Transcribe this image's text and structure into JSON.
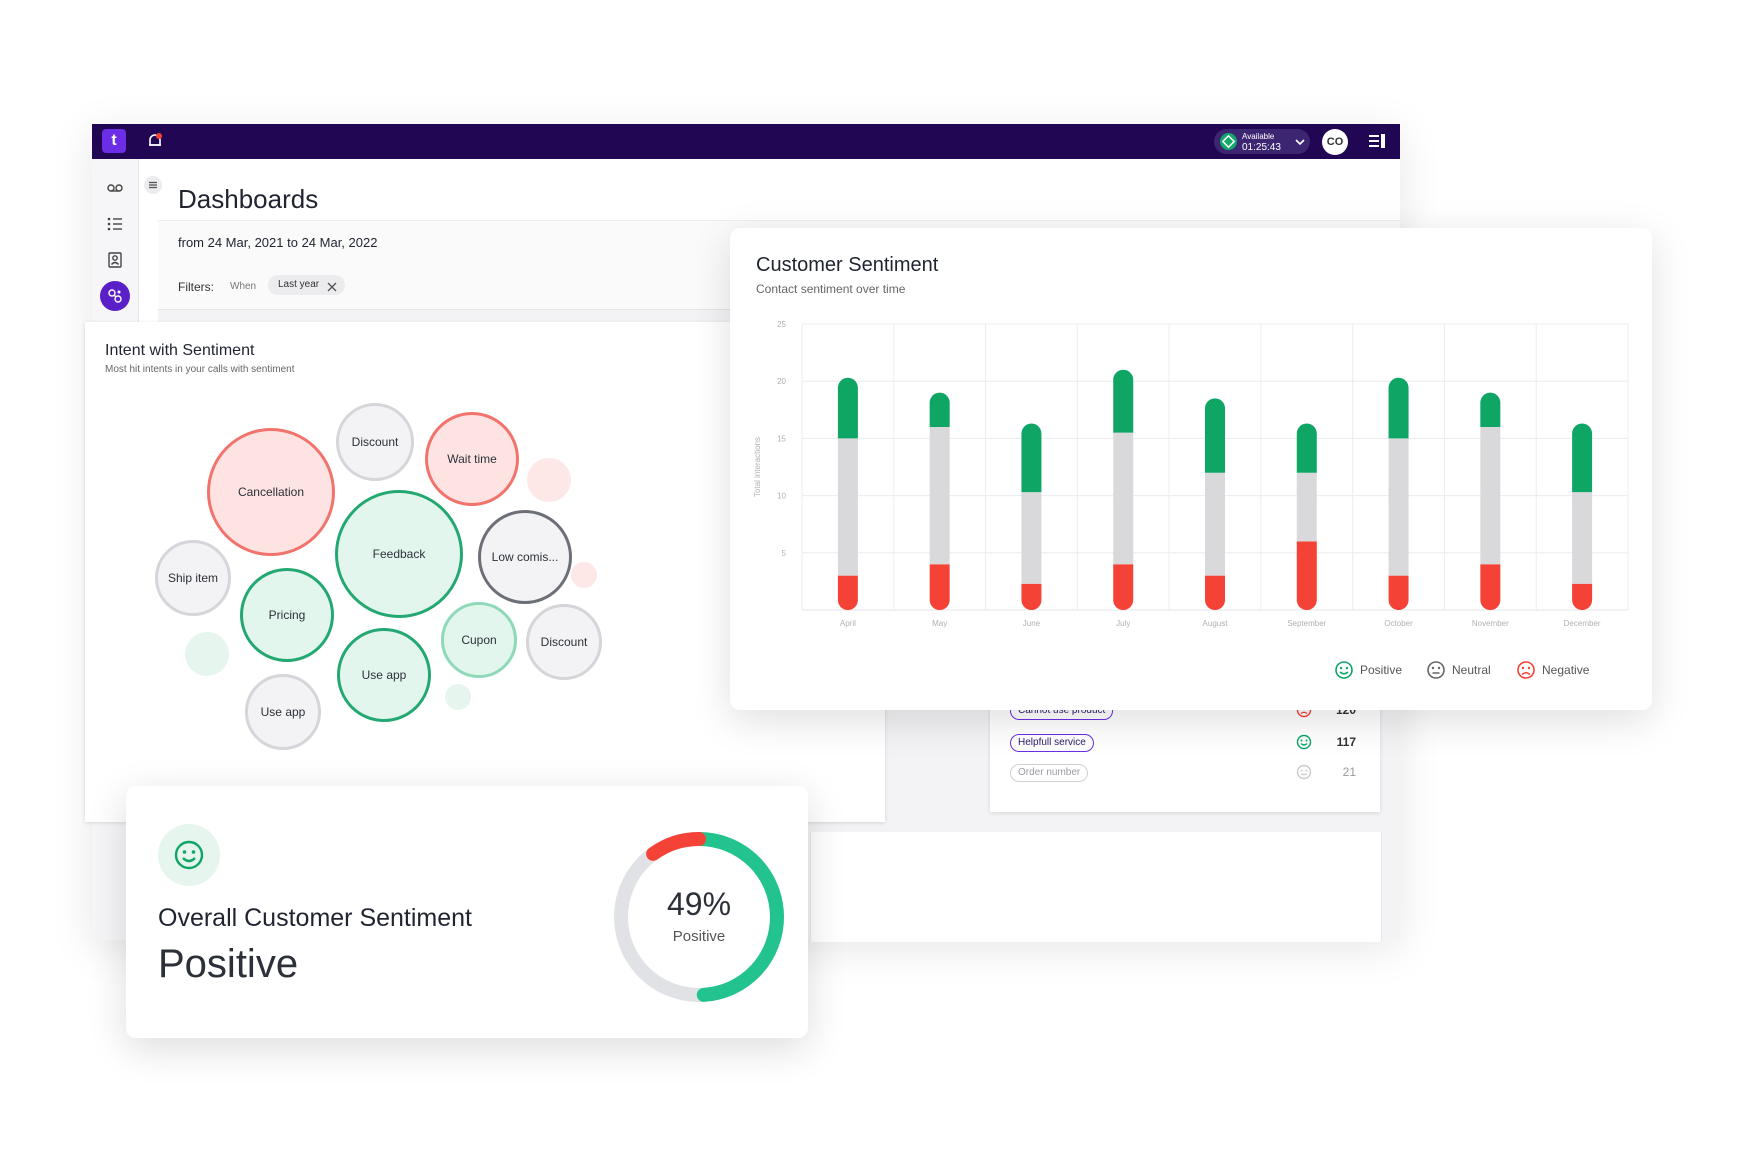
{
  "topbar": {
    "logo_text": "t",
    "status_label": "Available",
    "status_timer": "01:25:43",
    "avatar_initials": "CO"
  },
  "sidebar": {
    "items": [
      {
        "icon": "voicemail-icon"
      },
      {
        "icon": "list-icon"
      },
      {
        "icon": "contacts-icon"
      },
      {
        "icon": "analytics-icon",
        "active": true
      },
      {
        "icon": "brain-icon"
      },
      {
        "icon": "compass-icon"
      },
      {
        "icon": "gear-icon"
      }
    ]
  },
  "page": {
    "title": "Dashboards",
    "date_range": "from 24 Mar, 2021 to 24 Mar, 2022",
    "filters_label": "Filters:",
    "when_label": "When",
    "filter_chip": "Last year"
  },
  "intent_card": {
    "title": "Intent with Sentiment",
    "subtitle": "Most hit intents in your calls with sentiment",
    "bubbles": [
      {
        "label": "Discount",
        "sentiment": "neutral"
      },
      {
        "label": "Wait time",
        "sentiment": "negative"
      },
      {
        "label": "Cancellation",
        "sentiment": "negative"
      },
      {
        "label": "Feedback",
        "sentiment": "positive"
      },
      {
        "label": "Low comis...",
        "sentiment": "neutral-dark"
      },
      {
        "label": "Ship item",
        "sentiment": "neutral"
      },
      {
        "label": "Pricing",
        "sentiment": "positive"
      },
      {
        "label": "Cupon",
        "sentiment": "positive-light"
      },
      {
        "label": "Discount",
        "sentiment": "neutral"
      },
      {
        "label": "Use app",
        "sentiment": "positive"
      },
      {
        "label": "Use app",
        "sentiment": "neutral"
      }
    ]
  },
  "intent_table": {
    "rows": [
      {
        "tag": "Cannot use product",
        "sentiment": "negative",
        "count": "120"
      },
      {
        "tag": "Helpfull service",
        "sentiment": "positive",
        "count": "117"
      },
      {
        "tag": "Order number",
        "sentiment": "neutral",
        "count": "21"
      }
    ]
  },
  "sentiment_card": {
    "title": "Customer Sentiment",
    "subtitle": "Contact sentiment over time",
    "legend": {
      "positive": "Positive",
      "neutral": "Neutral",
      "negative": "Negative"
    }
  },
  "chart_data": {
    "type": "bar",
    "stacked": true,
    "title": "Customer Sentiment",
    "subtitle": "Contact sentiment over time",
    "ylabel": "Total interactions",
    "xlabel": "",
    "ylim": [
      0,
      25
    ],
    "yticks": [
      5,
      10,
      15,
      20,
      25
    ],
    "grid": true,
    "legend_position": "bottom-right",
    "categories": [
      "April",
      "May",
      "June",
      "July",
      "August",
      "September",
      "October",
      "November",
      "December"
    ],
    "series": [
      {
        "name": "Negative",
        "color": "#f44336",
        "values": [
          3,
          4,
          2.3,
          4,
          3,
          6,
          3,
          4,
          2.3
        ]
      },
      {
        "name": "Neutral",
        "color": "#d9d9dc",
        "values": [
          12,
          12,
          8,
          11.5,
          9,
          6,
          12,
          12,
          8
        ]
      },
      {
        "name": "Positive",
        "color": "#0ea565",
        "values": [
          5.3,
          3,
          6,
          5.5,
          6.5,
          4.3,
          5.3,
          3,
          6
        ]
      }
    ]
  },
  "overall": {
    "title": "Overall Customer Sentiment",
    "value": "Positive",
    "percent": "49%",
    "percent_label": "Positive",
    "positive_fraction": 0.49,
    "negative_fraction": 0.1,
    "colors": {
      "positive": "#22c38e",
      "negative": "#f44336",
      "neutral": "#e1e2e6"
    }
  }
}
